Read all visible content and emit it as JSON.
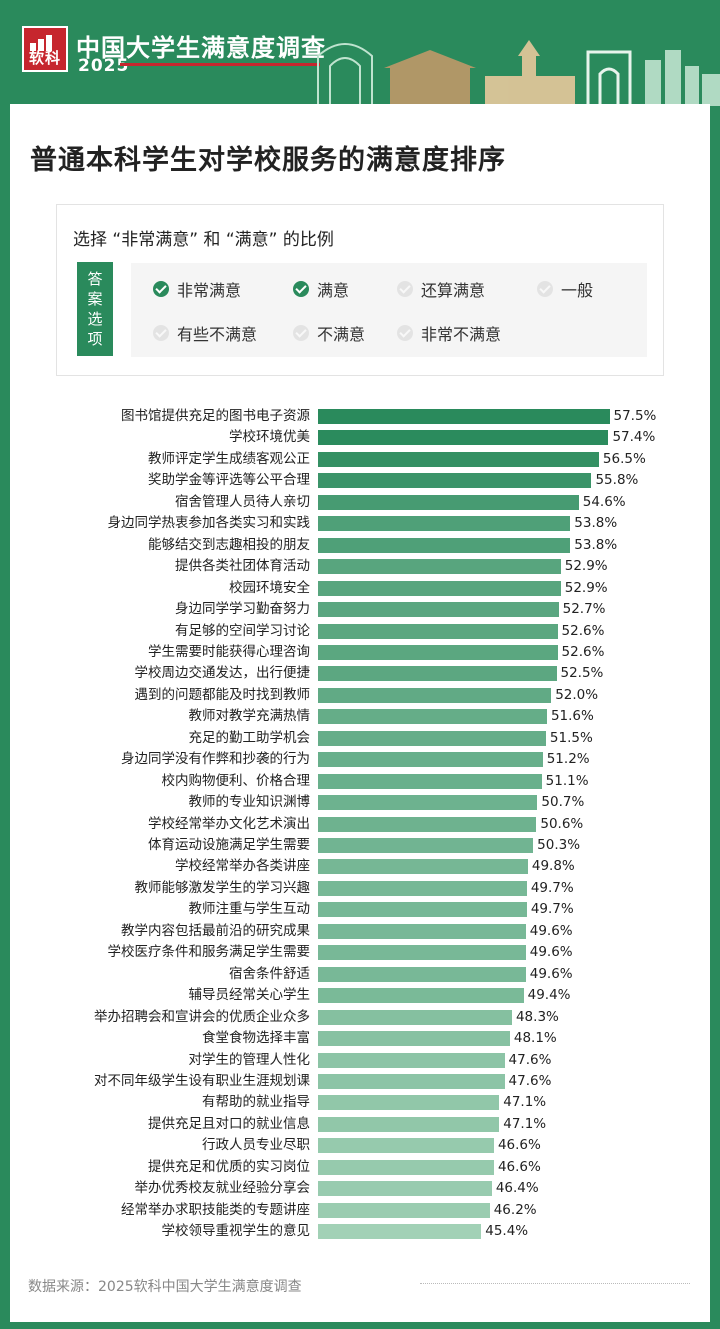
{
  "header": {
    "logo_text": "软科",
    "survey_title": "中国大学生满意度调查",
    "survey_year": "2025"
  },
  "main_title": "普通本科学生对学校服务的满意度排序",
  "question": {
    "text": "选择 “非常满意” 和 “满意” 的比例",
    "tag_chars": [
      "答",
      "案",
      "选",
      "项"
    ],
    "options": [
      {
        "label": "非常满意",
        "selected": true
      },
      {
        "label": "满意",
        "selected": true
      },
      {
        "label": "还算满意",
        "selected": false
      },
      {
        "label": "一般",
        "selected": false
      },
      {
        "label": "有些不满意",
        "selected": false
      },
      {
        "label": "不满意",
        "selected": false
      },
      {
        "label": "非常不满意",
        "selected": false
      }
    ]
  },
  "colors": {
    "brand_green": "#2a8a5c",
    "bar_dark": "#2a8a5c",
    "bar_light": "#a2d1b6",
    "logo_red": "#c6262e"
  },
  "chart_data": {
    "type": "bar",
    "orientation": "horizontal",
    "value_suffix": "%",
    "categories": [
      "图书馆提供充足的图书电子资源",
      "学校环境优美",
      "教师评定学生成绩客观公正",
      "奖助学金等评选等公平合理",
      "宿舍管理人员待人亲切",
      "身边同学热衷参加各类实习和实践",
      "能够结交到志趣相投的朋友",
      "提供各类社团体育活动",
      "校园环境安全",
      "身边同学学习勤奋努力",
      "有足够的空间学习讨论",
      "学生需要时能获得心理咨询",
      "学校周边交通发达，出行便捷",
      "遇到的问题都能及时找到教师",
      "教师对教学充满热情",
      "充足的勤工助学机会",
      "身边同学没有作弊和抄袭的行为",
      "校内购物便利、价格合理",
      "教师的专业知识渊博",
      "学校经常举办文化艺术演出",
      "体育运动设施满足学生需要",
      "学校经常举办各类讲座",
      "教师能够激发学生的学习兴趣",
      "教师注重与学生互动",
      "教学内容包括最前沿的研究成果",
      "学校医疗条件和服务满足学生需要",
      "宿舍条件舒适",
      "辅导员经常关心学生",
      "举办招聘会和宣讲会的优质企业众多",
      "食堂食物选择丰富",
      "对学生的管理人性化",
      "对不同年级学生设有职业生涯规划课",
      "有帮助的就业指导",
      "提供充足且对口的就业信息",
      "行政人员专业尽职",
      "提供充足和优质的实习岗位",
      "举办优秀校友就业经验分享会",
      "经常举办求职技能类的专题讲座",
      "学校领导重视学生的意见"
    ],
    "values": [
      57.5,
      57.4,
      56.5,
      55.8,
      54.6,
      53.8,
      53.8,
      52.9,
      52.9,
      52.7,
      52.6,
      52.6,
      52.5,
      52.0,
      51.6,
      51.5,
      51.2,
      51.1,
      50.7,
      50.6,
      50.3,
      49.8,
      49.7,
      49.7,
      49.6,
      49.6,
      49.6,
      49.4,
      48.3,
      48.1,
      47.6,
      47.6,
      47.1,
      47.1,
      46.6,
      46.6,
      46.4,
      46.2,
      45.4
    ],
    "value_labels": [
      "57.5%",
      "57.4%",
      "56.5%",
      "55.8%",
      "54.6%",
      "53.8%",
      "53.8%",
      "52.9%",
      "52.9%",
      "52.7%",
      "52.6%",
      "52.6%",
      "52.5%",
      "52.0%",
      "51.6%",
      "51.5%",
      "51.2%",
      "51.1%",
      "50.7%",
      "50.6%",
      "50.3%",
      "49.8%",
      "49.7%",
      "49.7%",
      "49.6%",
      "49.6%",
      "49.6%",
      "49.4%",
      "48.3%",
      "48.1%",
      "47.6%",
      "47.6%",
      "47.1%",
      "47.1%",
      "46.6%",
      "46.6%",
      "46.4%",
      "46.2%",
      "45.4%"
    ]
  },
  "source": "数据来源：2025软科中国大学生满意度调查"
}
